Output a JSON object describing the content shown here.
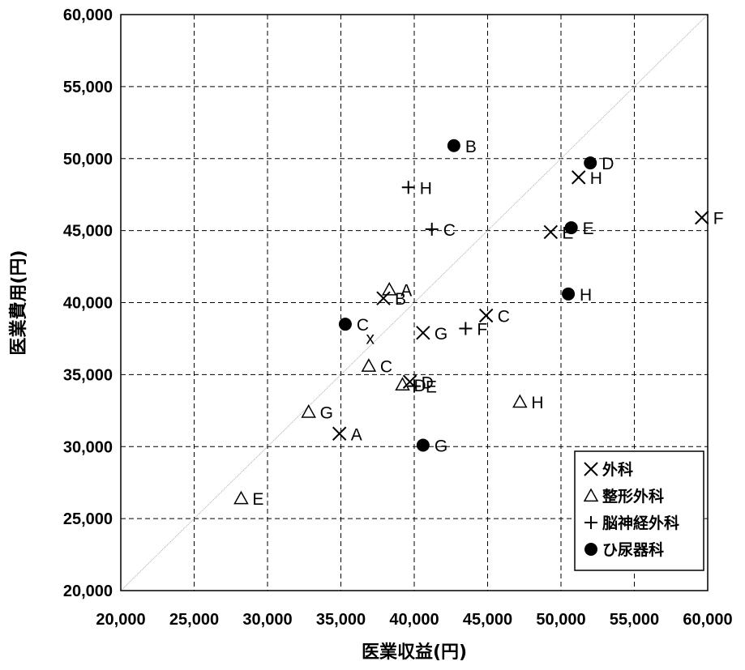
{
  "chart_data": {
    "type": "scatter",
    "xlabel": "医業収益(円)",
    "ylabel": "医業費用(円)",
    "xlim": [
      20000,
      60000
    ],
    "ylim": [
      20000,
      60000
    ],
    "x_ticks": [
      "20,000",
      "25,000",
      "30,000",
      "35,000",
      "40,000",
      "45,000",
      "50,000",
      "55,000",
      "60,000"
    ],
    "y_ticks": [
      "20,000",
      "25,000",
      "30,000",
      "35,000",
      "40,000",
      "45,000",
      "50,000",
      "55,000",
      "60,000"
    ],
    "grid": true,
    "reference_line": "y = x",
    "legend_position": "bottom-right",
    "series": [
      {
        "name": "外科",
        "marker": "x",
        "points": [
          {
            "label": "A",
            "x": 34900,
            "y": 30900
          },
          {
            "label": "B",
            "x": 37900,
            "y": 40300
          },
          {
            "label": "C",
            "x": 44900,
            "y": 39100
          },
          {
            "label": "D",
            "x": 39700,
            "y": 34500
          },
          {
            "label": "E",
            "x": 49300,
            "y": 44900
          },
          {
            "label": "F",
            "x": 59600,
            "y": 45900
          },
          {
            "label": "G",
            "x": 40600,
            "y": 37900
          },
          {
            "label": "H",
            "x": 51200,
            "y": 48700
          }
        ]
      },
      {
        "name": "整形外科",
        "marker": "triangle",
        "points": [
          {
            "label": "A",
            "x": 38300,
            "y": 40900
          },
          {
            "label": "C",
            "x": 36900,
            "y": 35600
          },
          {
            "label": "D",
            "x": 39200,
            "y": 34300
          },
          {
            "label": "E",
            "x": 28200,
            "y": 26400
          },
          {
            "label": "G",
            "x": 32800,
            "y": 32400
          },
          {
            "label": "H",
            "x": 47200,
            "y": 33100
          }
        ]
      },
      {
        "name": "脳神経外科",
        "marker": "plus",
        "points": [
          {
            "label": "C",
            "x": 41200,
            "y": 45100
          },
          {
            "label": "E",
            "x": 40000,
            "y": 34200
          },
          {
            "label": "F",
            "x": 43500,
            "y": 38200
          },
          {
            "label": "H",
            "x": 39600,
            "y": 48000
          }
        ]
      },
      {
        "name": "ひ尿器科",
        "marker": "circle",
        "points": [
          {
            "label": "B",
            "x": 42700,
            "y": 50900
          },
          {
            "label": "C",
            "x": 35300,
            "y": 38500
          },
          {
            "label": "D",
            "x": 52000,
            "y": 49700
          },
          {
            "label": "E",
            "x": 50700,
            "y": 45200
          },
          {
            "label": "G",
            "x": 40600,
            "y": 30100
          },
          {
            "label": "H",
            "x": 50500,
            "y": 40600
          }
        ]
      }
    ],
    "annotations": [
      {
        "text": "x",
        "x": 37000,
        "y": 37400
      }
    ]
  }
}
